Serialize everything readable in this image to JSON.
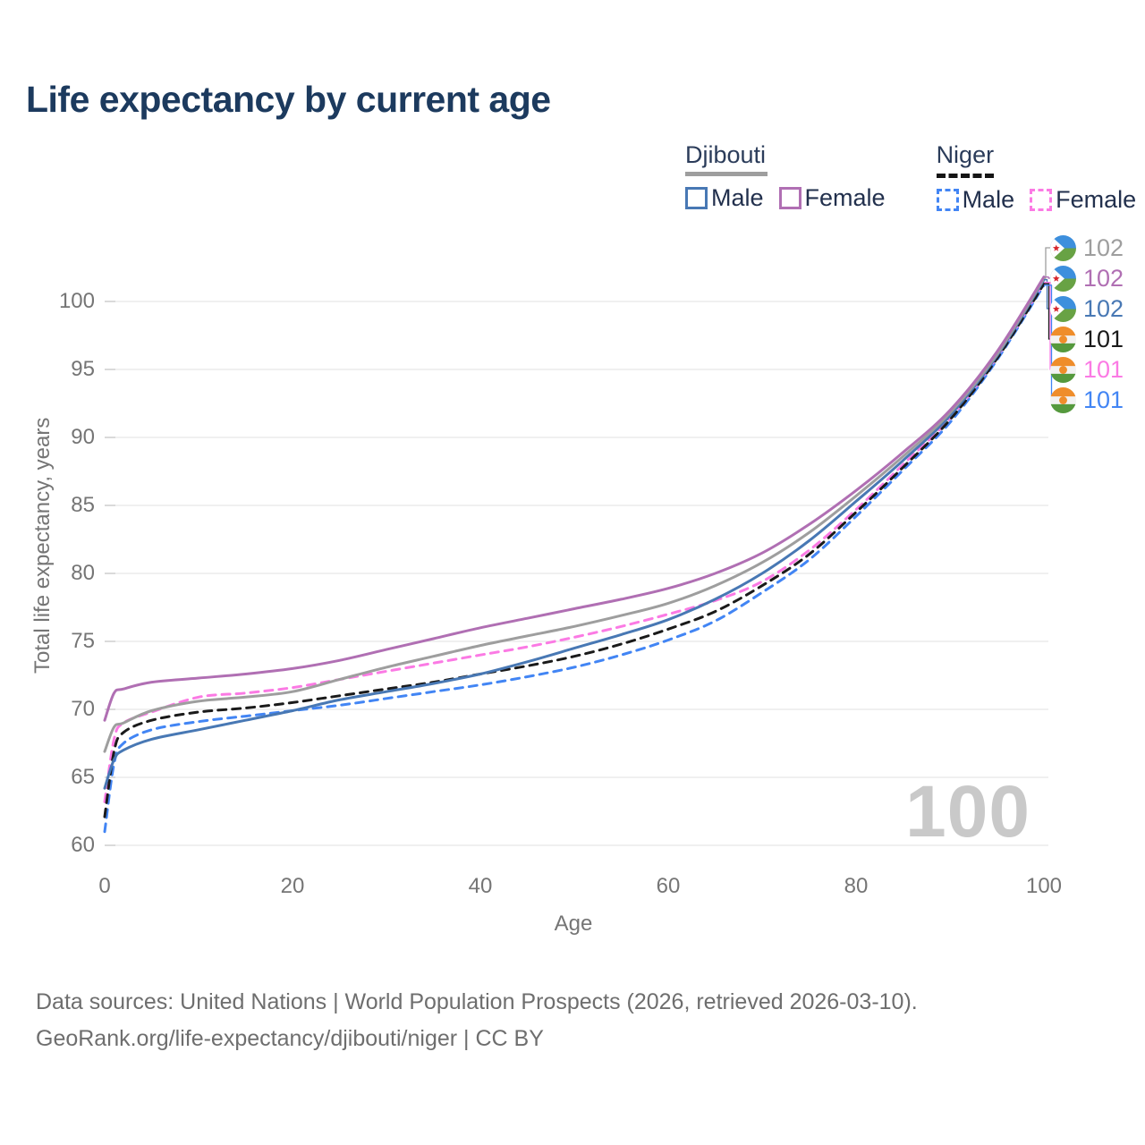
{
  "title": "Life expectancy by current age",
  "legend": {
    "groups": [
      {
        "country": "Djibouti",
        "line_style": "solid",
        "underline_color": "#9e9e9e",
        "items": [
          {
            "label": "Male",
            "color": "#4878b4"
          },
          {
            "label": "Female",
            "color": "#b06fb3"
          }
        ]
      },
      {
        "country": "Niger",
        "line_style": "dashed",
        "underline_color": "#151515",
        "items": [
          {
            "label": "Male",
            "color": "#4285f4"
          },
          {
            "label": "Female",
            "color": "#fb7ae4"
          }
        ]
      }
    ]
  },
  "chart_data": {
    "type": "line",
    "title": "Life expectancy by current age",
    "xlabel": "Age",
    "ylabel": "Total life expectancy, years",
    "xlim": [
      0,
      100
    ],
    "ylim": [
      58,
      103
    ],
    "xticks": [
      0,
      20,
      40,
      60,
      80,
      100
    ],
    "yticks": [
      60,
      65,
      70,
      75,
      80,
      85,
      90,
      95,
      100
    ],
    "grid": "horizontal",
    "legend_position": "top-right",
    "watermark": "100",
    "x": [
      0,
      1,
      2,
      5,
      10,
      15,
      20,
      25,
      30,
      35,
      40,
      45,
      50,
      55,
      60,
      65,
      70,
      75,
      80,
      85,
      90,
      95,
      100
    ],
    "series": [
      {
        "name": "Djibouti Both sexes",
        "country": "Djibouti",
        "sex": "both",
        "style": "solid",
        "color": "#9e9e9e",
        "flag": "djibouti",
        "end_label": "102",
        "values": [
          66.9,
          68.7,
          69.0,
          69.9,
          70.6,
          70.9,
          71.3,
          72.2,
          73.1,
          73.9,
          74.7,
          75.4,
          76.1,
          76.9,
          77.8,
          79.1,
          80.8,
          83.0,
          85.7,
          88.6,
          91.8,
          96.1,
          101.7
        ]
      },
      {
        "name": "Djibouti Female",
        "country": "Djibouti",
        "sex": "female",
        "style": "solid",
        "color": "#b06fb3",
        "flag": "djibouti",
        "end_label": "102",
        "values": [
          69.2,
          71.2,
          71.5,
          72.0,
          72.3,
          72.6,
          73.0,
          73.6,
          74.4,
          75.2,
          76.0,
          76.7,
          77.4,
          78.1,
          78.9,
          80.0,
          81.5,
          83.6,
          86.1,
          88.9,
          92.0,
          96.3,
          101.8
        ]
      },
      {
        "name": "Djibouti Male",
        "country": "Djibouti",
        "sex": "male",
        "style": "solid",
        "color": "#4878b4",
        "flag": "djibouti",
        "end_label": "102",
        "values": [
          64.2,
          66.3,
          67.0,
          67.8,
          68.5,
          69.2,
          69.9,
          70.7,
          71.3,
          71.9,
          72.6,
          73.5,
          74.5,
          75.5,
          76.6,
          78.1,
          80.0,
          82.4,
          85.3,
          88.3,
          91.6,
          96.0,
          101.6
        ]
      },
      {
        "name": "Niger Both sexes",
        "country": "Niger",
        "sex": "both",
        "style": "dashed",
        "color": "#1a1a1a",
        "flag": "niger",
        "end_label": "101",
        "values": [
          62.1,
          66.9,
          68.3,
          69.2,
          69.8,
          70.1,
          70.5,
          71.0,
          71.5,
          72.0,
          72.6,
          73.2,
          73.9,
          74.8,
          75.9,
          77.2,
          79.1,
          81.4,
          84.5,
          87.8,
          91.3,
          95.8,
          101.3
        ]
      },
      {
        "name": "Niger Female",
        "country": "Niger",
        "sex": "female",
        "style": "dashed",
        "color": "#fb7ae4",
        "flag": "niger",
        "end_label": "101",
        "values": [
          63.2,
          67.8,
          69.0,
          69.8,
          70.9,
          71.2,
          71.6,
          72.2,
          72.8,
          73.4,
          74.0,
          74.6,
          75.3,
          76.1,
          77.0,
          78.0,
          79.4,
          81.7,
          84.7,
          88.0,
          91.4,
          95.9,
          101.4
        ]
      },
      {
        "name": "Niger Male",
        "country": "Niger",
        "sex": "male",
        "style": "dashed",
        "color": "#4285f4",
        "flag": "niger",
        "end_label": "101",
        "values": [
          61.0,
          66.0,
          67.5,
          68.5,
          69.1,
          69.5,
          69.9,
          70.3,
          70.8,
          71.3,
          71.8,
          72.4,
          73.1,
          74.0,
          75.1,
          76.5,
          78.6,
          81.0,
          84.2,
          87.6,
          91.1,
          95.7,
          101.2
        ]
      }
    ]
  },
  "footer": {
    "line1": "Data sources: United Nations | World Population Prospects (2026, retrieved 2026-03-10).",
    "line2": "GeoRank.org/life-expectancy/djibouti/niger | CC BY"
  }
}
